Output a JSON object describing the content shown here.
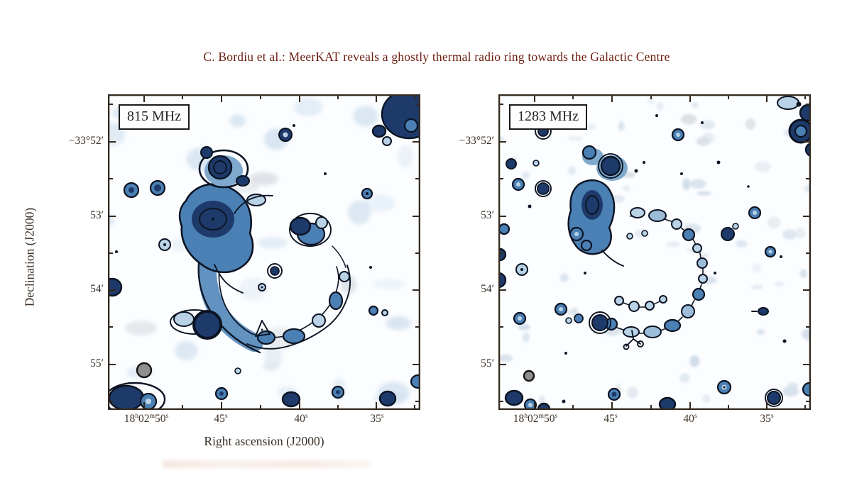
{
  "title": {
    "text": "C. Bordiu  et al.: MeerKAT reveals a ghostly thermal radio ring towards the Galactic Centre",
    "color": "#6e1e10"
  },
  "figure": {
    "panels": [
      {
        "id": "left",
        "freq_label": "815 MHz"
      },
      {
        "id": "right",
        "freq_label": "1283 MHz"
      }
    ],
    "axes": {
      "y_label": "Declination (J2000)",
      "x_label": "Right ascension (J2000)",
      "y_ticks": [
        "−33°52′",
        "53′",
        "54′",
        "55′"
      ],
      "x_ticks": [
        {
          "segments": [
            [
              "18",
              "h"
            ],
            [
              "02",
              "m"
            ],
            [
              "50",
              "s"
            ]
          ]
        },
        {
          "segments": [
            [
              "45",
              "s"
            ]
          ]
        },
        {
          "segments": [
            [
              "40",
              "s"
            ]
          ]
        },
        {
          "segments": [
            [
              "35",
              "s"
            ]
          ]
        }
      ]
    },
    "colors": {
      "map_background": "#fbfdff",
      "faint_emission": "#d6e4f1",
      "mid_emission": "#4b80b4",
      "bright_emission": "#1d3a6a",
      "contour": "#0c1524",
      "beam": "#8f8f8f",
      "frame": "#342a20"
    }
  }
}
